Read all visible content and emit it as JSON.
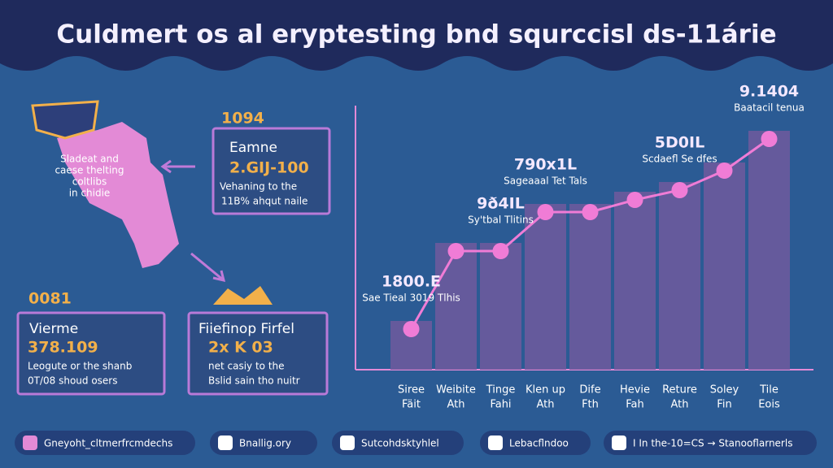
{
  "title": "Culdmert os al eryptesting bnd squrccisl ds-11árie",
  "map_caption": [
    "Sladeat and",
    "caese thelting",
    "coltlibs",
    "in chidie"
  ],
  "panels": [
    {
      "badge": "1094",
      "heading": "Eamne",
      "value": "2.GIJ-100",
      "text": [
        "Vehaning to the",
        "11B% ahqut naile"
      ]
    },
    {
      "badge": "0081",
      "heading": "Vierme",
      "value": "378.109",
      "text": [
        "Leogute or the shanb",
        "0T/08 shoud osers"
      ]
    },
    {
      "heading": "Fiiefinop Firfel",
      "value": "2x K 03",
      "text": [
        "net casiy to the",
        "Bslid sain tho nuitr"
      ]
    }
  ],
  "chart": {
    "type": "bar",
    "categories": [
      [
        "Siree",
        "Fäit"
      ],
      [
        "Weibite",
        "Ath"
      ],
      [
        "Tinge",
        "Fahi"
      ],
      [
        "Klen up",
        "Ath"
      ],
      [
        "Dife",
        "Fth"
      ],
      [
        "Hevie",
        "Fah"
      ],
      [
        "Reture",
        "Ath"
      ],
      [
        "Soley",
        "Fin"
      ],
      [
        "Tile",
        "Eois"
      ]
    ],
    "values": [
      20,
      52,
      52,
      68,
      68,
      73,
      77,
      85,
      98
    ],
    "ylim": [
      0,
      100
    ],
    "bar_color": "#6b5a9c",
    "line_color": "#f07cd6",
    "annotations": [
      {
        "value": "1800.E",
        "text": "Sae Tieal 3019 Tlhis"
      },
      {
        "value": "9ð4IL",
        "text": "Sy'tbal Tlitins"
      },
      {
        "value": "790x1L",
        "text": "Sageaaal Tet Tals"
      },
      {
        "value": "5D0IL",
        "text": "Scdaefl Se dfes"
      },
      {
        "value": "9.1404",
        "text": "Baatacil tenua"
      }
    ]
  },
  "footer": [
    "Gneyoht_cltmerfrcmdechs",
    "Bnallig.ory",
    "Sutcohdsktyhlel",
    "Lebacflndoo",
    "I In the-10=CS → Stanooflarnerls"
  ]
}
